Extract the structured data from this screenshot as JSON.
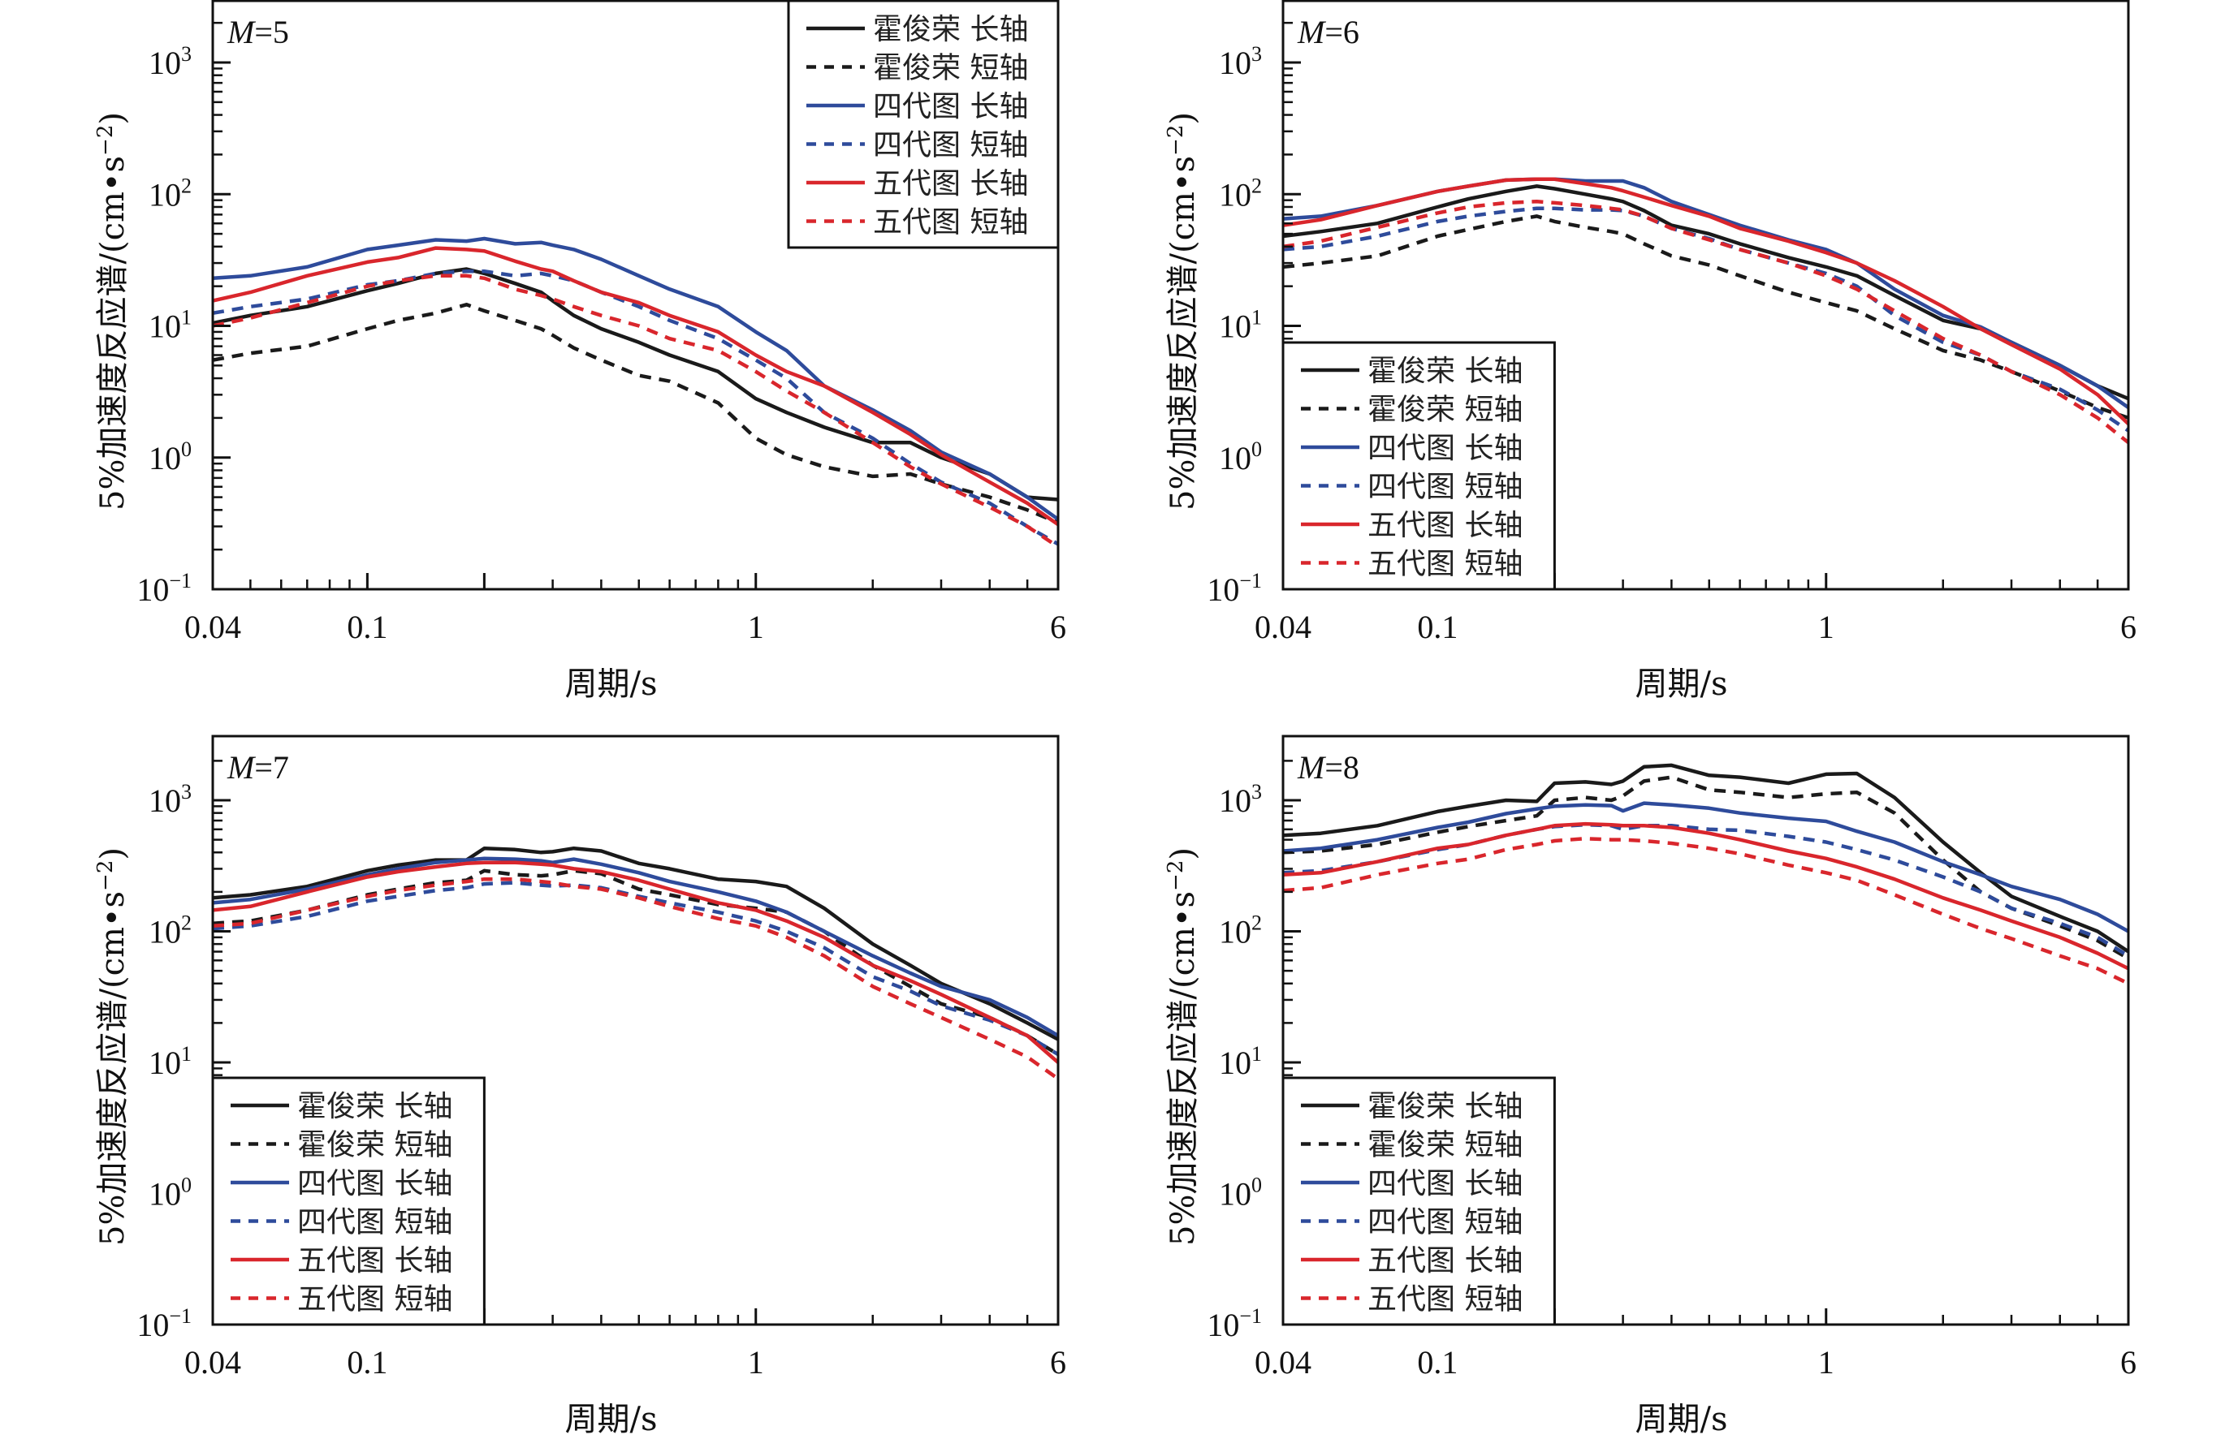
{
  "figure": {
    "shared": {
      "xlabel": "周期/s",
      "ylabel": "5%加速度反应谱/(cm•s",
      "ylabel_sup": "−2",
      "ylabel_close": ")",
      "x_tick_labels": [
        "0.04",
        "0.1",
        "1",
        "6"
      ],
      "y_tick_labels": [
        {
          "base": "10",
          "exp": "3"
        },
        {
          "base": "10",
          "exp": "2"
        },
        {
          "base": "10",
          "exp": "1"
        },
        {
          "base": "10",
          "exp": "0"
        },
        {
          "base": "10",
          "exp": "−1"
        }
      ]
    },
    "colors": {
      "black": "#1a1a1a",
      "blue": "#2e4b9b",
      "red": "#d9262c"
    }
  },
  "chart_data": [
    {
      "type": "line",
      "panel_label_var": "M",
      "panel_label_value": "=5",
      "title": "M=5",
      "xlabel": "周期/s",
      "ylabel": "5%加速度反应谱/(cm•s−2)",
      "xscale": "log",
      "yscale": "log",
      "xlim": [
        0.04,
        6
      ],
      "ylim": [
        0.1,
        3000
      ],
      "grid": false,
      "legend_position": "top-right",
      "x": [
        0.04,
        0.05,
        0.07,
        0.1,
        0.12,
        0.15,
        0.18,
        0.2,
        0.24,
        0.28,
        0.3,
        0.34,
        0.4,
        0.5,
        0.6,
        0.8,
        1.0,
        1.2,
        1.5,
        2.0,
        2.5,
        3.0,
        4.0,
        5.0,
        6.0
      ],
      "series": [
        {
          "name": "霍俊荣 长轴",
          "color": "black",
          "dash": false,
          "values": [
            10.5,
            12,
            14,
            18.5,
            21,
            25,
            27,
            25,
            21,
            18,
            15.5,
            12,
            9.5,
            7.5,
            6,
            4.5,
            2.8,
            2.2,
            1.7,
            1.3,
            1.3,
            1.0,
            0.75,
            0.5,
            0.48
          ]
        },
        {
          "name": "霍俊荣 短轴",
          "color": "black",
          "dash": true,
          "values": [
            5.5,
            6.2,
            7,
            9.5,
            11,
            12.5,
            14.5,
            13,
            11,
            9.5,
            8.5,
            6.8,
            5.5,
            4.2,
            3.8,
            2.6,
            1.4,
            1.05,
            0.85,
            0.72,
            0.75,
            0.63,
            0.5,
            0.4,
            0.32
          ]
        },
        {
          "name": "四代图 长轴",
          "color": "blue",
          "dash": false,
          "values": [
            23,
            24,
            28,
            38,
            41,
            45,
            44,
            46,
            42,
            43,
            41,
            38,
            32,
            24,
            19,
            14,
            9,
            6.5,
            3.5,
            2.3,
            1.6,
            1.1,
            0.75,
            0.5,
            0.34
          ]
        },
        {
          "name": "四代图 短轴",
          "color": "blue",
          "dash": true,
          "values": [
            12.5,
            14,
            16,
            20.5,
            22,
            25,
            26,
            26,
            24,
            25,
            24,
            22,
            18,
            14,
            11,
            8,
            5.5,
            4,
            2.2,
            1.4,
            0.9,
            0.65,
            0.45,
            0.3,
            0.22
          ]
        },
        {
          "name": "五代图 长轴",
          "color": "red",
          "dash": false,
          "values": [
            15.5,
            18,
            24,
            30.5,
            33,
            39,
            38,
            37,
            31,
            27,
            26,
            22,
            18,
            15,
            12,
            9,
            6,
            4.5,
            3.5,
            2.2,
            1.5,
            1.05,
            0.65,
            0.45,
            0.31
          ]
        },
        {
          "name": "五代图 短轴",
          "color": "red",
          "dash": true,
          "values": [
            10,
            11.5,
            15,
            20,
            22,
            24,
            24,
            23,
            19,
            17,
            16,
            14,
            12,
            10,
            8,
            6.5,
            4.5,
            3.2,
            2.2,
            1.3,
            0.85,
            0.63,
            0.42,
            0.3,
            0.21
          ]
        }
      ]
    },
    {
      "type": "line",
      "panel_label_var": "M",
      "panel_label_value": "=6",
      "title": "M=6",
      "xlabel": "周期/s",
      "ylabel": "5%加速度反应谱/(cm•s−2)",
      "xscale": "log",
      "yscale": "log",
      "xlim": [
        0.04,
        6
      ],
      "ylim": [
        0.1,
        3000
      ],
      "grid": false,
      "legend_position": "bottom-left",
      "x": [
        0.04,
        0.05,
        0.07,
        0.1,
        0.12,
        0.15,
        0.18,
        0.2,
        0.24,
        0.28,
        0.3,
        0.34,
        0.4,
        0.5,
        0.6,
        0.8,
        1.0,
        1.2,
        1.5,
        2.0,
        2.5,
        3.0,
        4.0,
        5.0,
        6.0
      ],
      "series": [
        {
          "name": "霍俊荣 长轴",
          "color": "black",
          "dash": false,
          "values": [
            48,
            52,
            60,
            80,
            92,
            105,
            115,
            110,
            100,
            92,
            88,
            75,
            58,
            50,
            42,
            33,
            28,
            24,
            17,
            11,
            9.5,
            7.5,
            5,
            3.5,
            2.8
          ]
        },
        {
          "name": "霍俊荣 短轴",
          "color": "black",
          "dash": true,
          "values": [
            28,
            30,
            34,
            48,
            54,
            62,
            68,
            62,
            56,
            52,
            50,
            42,
            34,
            29,
            24,
            18,
            15,
            13,
            9.5,
            6.5,
            5.5,
            4.5,
            3.2,
            2.4,
            2
          ]
        },
        {
          "name": "四代图 长轴",
          "color": "blue",
          "dash": false,
          "values": [
            65,
            68,
            82,
            105,
            115,
            128,
            130,
            130,
            126,
            126,
            126,
            112,
            88,
            70,
            58,
            45,
            38,
            30,
            19,
            12,
            9.8,
            7.5,
            5,
            3.5,
            2.4
          ]
        },
        {
          "name": "四代图 短轴",
          "color": "blue",
          "dash": true,
          "values": [
            38,
            40,
            48,
            62,
            68,
            74,
            78,
            78,
            76,
            76,
            75,
            68,
            55,
            46,
            38,
            30,
            25,
            20,
            12,
            7.5,
            6,
            4.5,
            3.3,
            2.3,
            1.6
          ]
        },
        {
          "name": "五代图 长轴",
          "color": "red",
          "dash": false,
          "values": [
            58,
            64,
            82,
            105,
            115,
            128,
            130,
            130,
            120,
            112,
            106,
            95,
            82,
            68,
            55,
            44,
            36,
            30,
            22,
            14,
            9.5,
            7.2,
            4.7,
            3,
            1.8
          ]
        },
        {
          "name": "五代图 短轴",
          "color": "red",
          "dash": true,
          "values": [
            40,
            44,
            56,
            72,
            80,
            86,
            88,
            86,
            82,
            78,
            76,
            68,
            55,
            45,
            38,
            30,
            24,
            19,
            13,
            8,
            6,
            4.5,
            3,
            2,
            1.3
          ]
        }
      ]
    },
    {
      "type": "line",
      "panel_label_var": "M",
      "panel_label_value": "=7",
      "title": "M=7",
      "xlabel": "周期/s",
      "ylabel": "5%加速度反应谱/(cm•s−2)",
      "xscale": "log",
      "yscale": "log",
      "xlim": [
        0.04,
        6
      ],
      "ylim": [
        0.1,
        3000
      ],
      "grid": false,
      "legend_position": "bottom-left",
      "x": [
        0.04,
        0.05,
        0.07,
        0.1,
        0.12,
        0.15,
        0.18,
        0.2,
        0.24,
        0.28,
        0.3,
        0.34,
        0.4,
        0.5,
        0.6,
        0.8,
        1.0,
        1.2,
        1.5,
        2.0,
        2.5,
        3.0,
        4.0,
        5.0,
        6.0
      ],
      "series": [
        {
          "name": "霍俊荣 长轴",
          "color": "black",
          "dash": false,
          "values": [
            180,
            190,
            220,
            290,
            320,
            350,
            350,
            430,
            420,
            400,
            405,
            430,
            410,
            330,
            300,
            250,
            240,
            220,
            150,
            80,
            55,
            40,
            28,
            20,
            15
          ]
        },
        {
          "name": "霍俊荣 短轴",
          "color": "black",
          "dash": true,
          "values": [
            115,
            120,
            145,
            190,
            210,
            235,
            245,
            290,
            270,
            265,
            270,
            290,
            275,
            210,
            190,
            160,
            150,
            140,
            100,
            55,
            38,
            28,
            22,
            16,
            11.5
          ]
        },
        {
          "name": "四代图 长轴",
          "color": "blue",
          "dash": false,
          "values": [
            165,
            175,
            210,
            270,
            300,
            335,
            350,
            360,
            355,
            345,
            335,
            355,
            325,
            280,
            240,
            200,
            170,
            140,
            100,
            65,
            48,
            38,
            30,
            22,
            16
          ]
        },
        {
          "name": "四代图 短轴",
          "color": "blue",
          "dash": true,
          "values": [
            105,
            110,
            130,
            170,
            185,
            205,
            215,
            230,
            235,
            225,
            222,
            225,
            215,
            185,
            165,
            140,
            120,
            100,
            75,
            45,
            35,
            27,
            21,
            16,
            11.5
          ]
        },
        {
          "name": "五代图 长轴",
          "color": "red",
          "dash": false,
          "values": [
            145,
            155,
            200,
            260,
            285,
            310,
            330,
            335,
            335,
            325,
            320,
            300,
            285,
            245,
            210,
            165,
            145,
            120,
            90,
            55,
            42,
            33,
            22,
            16,
            10
          ]
        },
        {
          "name": "五代图 短轴",
          "color": "red",
          "dash": true,
          "values": [
            110,
            115,
            145,
            185,
            205,
            225,
            240,
            250,
            250,
            240,
            235,
            220,
            210,
            180,
            155,
            125,
            110,
            90,
            65,
            38,
            28,
            22,
            15,
            11,
            7.5
          ]
        }
      ]
    },
    {
      "type": "line",
      "panel_label_var": "M",
      "panel_label_value": "=8",
      "title": "M=8",
      "xlabel": "周期/s",
      "ylabel": "5%加速度反应谱/(cm•s−2)",
      "xscale": "log",
      "yscale": "log",
      "xlim": [
        0.04,
        6
      ],
      "ylim": [
        0.1,
        3000
      ],
      "grid": false,
      "legend_position": "bottom-left",
      "x": [
        0.04,
        0.05,
        0.07,
        0.1,
        0.12,
        0.15,
        0.18,
        0.2,
        0.24,
        0.28,
        0.3,
        0.34,
        0.4,
        0.5,
        0.6,
        0.8,
        1.0,
        1.2,
        1.5,
        2.0,
        2.5,
        3.0,
        4.0,
        5.0,
        6.0
      ],
      "series": [
        {
          "name": "霍俊荣 长轴",
          "color": "black",
          "dash": false,
          "values": [
            540,
            560,
            640,
            820,
            900,
            1000,
            980,
            1350,
            1380,
            1320,
            1400,
            1800,
            1850,
            1550,
            1500,
            1350,
            1580,
            1600,
            1050,
            480,
            280,
            185,
            130,
            100,
            70
          ]
        },
        {
          "name": "霍俊荣 短轴",
          "color": "black",
          "dash": true,
          "values": [
            400,
            410,
            460,
            570,
            630,
            700,
            760,
            1000,
            1050,
            1000,
            1080,
            1400,
            1500,
            1200,
            1150,
            1050,
            1120,
            1150,
            800,
            350,
            200,
            150,
            110,
            85,
            62
          ]
        },
        {
          "name": "四代图 长轴",
          "color": "blue",
          "dash": false,
          "values": [
            410,
            430,
            500,
            620,
            680,
            790,
            860,
            900,
            920,
            910,
            830,
            950,
            920,
            870,
            800,
            730,
            690,
            580,
            480,
            340,
            270,
            220,
            175,
            135,
            100
          ]
        },
        {
          "name": "四代图 短轴",
          "color": "blue",
          "dash": true,
          "values": [
            280,
            290,
            340,
            420,
            460,
            540,
            600,
            630,
            650,
            640,
            600,
            640,
            640,
            600,
            590,
            530,
            480,
            420,
            350,
            260,
            200,
            150,
            115,
            90,
            65
          ]
        },
        {
          "name": "五代图 长轴",
          "color": "red",
          "dash": false,
          "values": [
            270,
            280,
            340,
            430,
            460,
            540,
            600,
            640,
            660,
            650,
            640,
            640,
            620,
            560,
            500,
            410,
            360,
            310,
            250,
            180,
            145,
            120,
            90,
            68,
            52
          ]
        },
        {
          "name": "五代图 短轴",
          "color": "red",
          "dash": true,
          "values": [
            205,
            215,
            270,
            330,
            355,
            420,
            460,
            490,
            510,
            500,
            500,
            490,
            470,
            430,
            390,
            320,
            280,
            245,
            190,
            135,
            105,
            88,
            65,
            52,
            40
          ]
        }
      ]
    }
  ]
}
